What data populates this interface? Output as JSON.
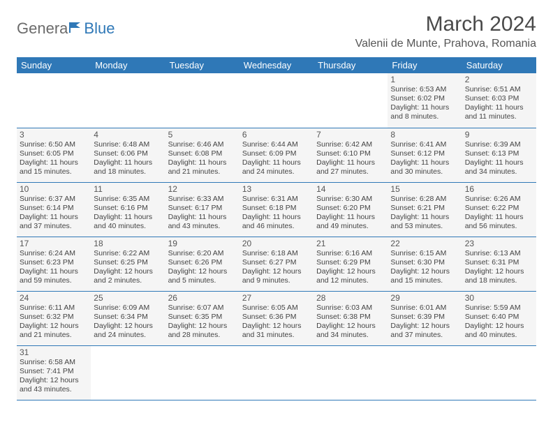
{
  "logo": {
    "part1": "Genera",
    "part2": "Blue"
  },
  "title": "March 2024",
  "location": "Valenii de Munte, Prahova, Romania",
  "colors": {
    "header_bg": "#2f78b7",
    "header_text": "#ffffff",
    "cell_bg": "#f5f5f5",
    "border": "#2f78b7",
    "text": "#444444"
  },
  "weekdays": [
    "Sunday",
    "Monday",
    "Tuesday",
    "Wednesday",
    "Thursday",
    "Friday",
    "Saturday"
  ],
  "weeks": [
    [
      null,
      null,
      null,
      null,
      null,
      {
        "n": "1",
        "sr": "Sunrise: 6:53 AM",
        "ss": "Sunset: 6:02 PM",
        "d1": "Daylight: 11 hours",
        "d2": "and 8 minutes."
      },
      {
        "n": "2",
        "sr": "Sunrise: 6:51 AM",
        "ss": "Sunset: 6:03 PM",
        "d1": "Daylight: 11 hours",
        "d2": "and 11 minutes."
      }
    ],
    [
      {
        "n": "3",
        "sr": "Sunrise: 6:50 AM",
        "ss": "Sunset: 6:05 PM",
        "d1": "Daylight: 11 hours",
        "d2": "and 15 minutes."
      },
      {
        "n": "4",
        "sr": "Sunrise: 6:48 AM",
        "ss": "Sunset: 6:06 PM",
        "d1": "Daylight: 11 hours",
        "d2": "and 18 minutes."
      },
      {
        "n": "5",
        "sr": "Sunrise: 6:46 AM",
        "ss": "Sunset: 6:08 PM",
        "d1": "Daylight: 11 hours",
        "d2": "and 21 minutes."
      },
      {
        "n": "6",
        "sr": "Sunrise: 6:44 AM",
        "ss": "Sunset: 6:09 PM",
        "d1": "Daylight: 11 hours",
        "d2": "and 24 minutes."
      },
      {
        "n": "7",
        "sr": "Sunrise: 6:42 AM",
        "ss": "Sunset: 6:10 PM",
        "d1": "Daylight: 11 hours",
        "d2": "and 27 minutes."
      },
      {
        "n": "8",
        "sr": "Sunrise: 6:41 AM",
        "ss": "Sunset: 6:12 PM",
        "d1": "Daylight: 11 hours",
        "d2": "and 30 minutes."
      },
      {
        "n": "9",
        "sr": "Sunrise: 6:39 AM",
        "ss": "Sunset: 6:13 PM",
        "d1": "Daylight: 11 hours",
        "d2": "and 34 minutes."
      }
    ],
    [
      {
        "n": "10",
        "sr": "Sunrise: 6:37 AM",
        "ss": "Sunset: 6:14 PM",
        "d1": "Daylight: 11 hours",
        "d2": "and 37 minutes."
      },
      {
        "n": "11",
        "sr": "Sunrise: 6:35 AM",
        "ss": "Sunset: 6:16 PM",
        "d1": "Daylight: 11 hours",
        "d2": "and 40 minutes."
      },
      {
        "n": "12",
        "sr": "Sunrise: 6:33 AM",
        "ss": "Sunset: 6:17 PM",
        "d1": "Daylight: 11 hours",
        "d2": "and 43 minutes."
      },
      {
        "n": "13",
        "sr": "Sunrise: 6:31 AM",
        "ss": "Sunset: 6:18 PM",
        "d1": "Daylight: 11 hours",
        "d2": "and 46 minutes."
      },
      {
        "n": "14",
        "sr": "Sunrise: 6:30 AM",
        "ss": "Sunset: 6:20 PM",
        "d1": "Daylight: 11 hours",
        "d2": "and 49 minutes."
      },
      {
        "n": "15",
        "sr": "Sunrise: 6:28 AM",
        "ss": "Sunset: 6:21 PM",
        "d1": "Daylight: 11 hours",
        "d2": "and 53 minutes."
      },
      {
        "n": "16",
        "sr": "Sunrise: 6:26 AM",
        "ss": "Sunset: 6:22 PM",
        "d1": "Daylight: 11 hours",
        "d2": "and 56 minutes."
      }
    ],
    [
      {
        "n": "17",
        "sr": "Sunrise: 6:24 AM",
        "ss": "Sunset: 6:23 PM",
        "d1": "Daylight: 11 hours",
        "d2": "and 59 minutes."
      },
      {
        "n": "18",
        "sr": "Sunrise: 6:22 AM",
        "ss": "Sunset: 6:25 PM",
        "d1": "Daylight: 12 hours",
        "d2": "and 2 minutes."
      },
      {
        "n": "19",
        "sr": "Sunrise: 6:20 AM",
        "ss": "Sunset: 6:26 PM",
        "d1": "Daylight: 12 hours",
        "d2": "and 5 minutes."
      },
      {
        "n": "20",
        "sr": "Sunrise: 6:18 AM",
        "ss": "Sunset: 6:27 PM",
        "d1": "Daylight: 12 hours",
        "d2": "and 9 minutes."
      },
      {
        "n": "21",
        "sr": "Sunrise: 6:16 AM",
        "ss": "Sunset: 6:29 PM",
        "d1": "Daylight: 12 hours",
        "d2": "and 12 minutes."
      },
      {
        "n": "22",
        "sr": "Sunrise: 6:15 AM",
        "ss": "Sunset: 6:30 PM",
        "d1": "Daylight: 12 hours",
        "d2": "and 15 minutes."
      },
      {
        "n": "23",
        "sr": "Sunrise: 6:13 AM",
        "ss": "Sunset: 6:31 PM",
        "d1": "Daylight: 12 hours",
        "d2": "and 18 minutes."
      }
    ],
    [
      {
        "n": "24",
        "sr": "Sunrise: 6:11 AM",
        "ss": "Sunset: 6:32 PM",
        "d1": "Daylight: 12 hours",
        "d2": "and 21 minutes."
      },
      {
        "n": "25",
        "sr": "Sunrise: 6:09 AM",
        "ss": "Sunset: 6:34 PM",
        "d1": "Daylight: 12 hours",
        "d2": "and 24 minutes."
      },
      {
        "n": "26",
        "sr": "Sunrise: 6:07 AM",
        "ss": "Sunset: 6:35 PM",
        "d1": "Daylight: 12 hours",
        "d2": "and 28 minutes."
      },
      {
        "n": "27",
        "sr": "Sunrise: 6:05 AM",
        "ss": "Sunset: 6:36 PM",
        "d1": "Daylight: 12 hours",
        "d2": "and 31 minutes."
      },
      {
        "n": "28",
        "sr": "Sunrise: 6:03 AM",
        "ss": "Sunset: 6:38 PM",
        "d1": "Daylight: 12 hours",
        "d2": "and 34 minutes."
      },
      {
        "n": "29",
        "sr": "Sunrise: 6:01 AM",
        "ss": "Sunset: 6:39 PM",
        "d1": "Daylight: 12 hours",
        "d2": "and 37 minutes."
      },
      {
        "n": "30",
        "sr": "Sunrise: 5:59 AM",
        "ss": "Sunset: 6:40 PM",
        "d1": "Daylight: 12 hours",
        "d2": "and 40 minutes."
      }
    ],
    [
      {
        "n": "31",
        "sr": "Sunrise: 6:58 AM",
        "ss": "Sunset: 7:41 PM",
        "d1": "Daylight: 12 hours",
        "d2": "and 43 minutes."
      },
      null,
      null,
      null,
      null,
      null,
      null
    ]
  ]
}
